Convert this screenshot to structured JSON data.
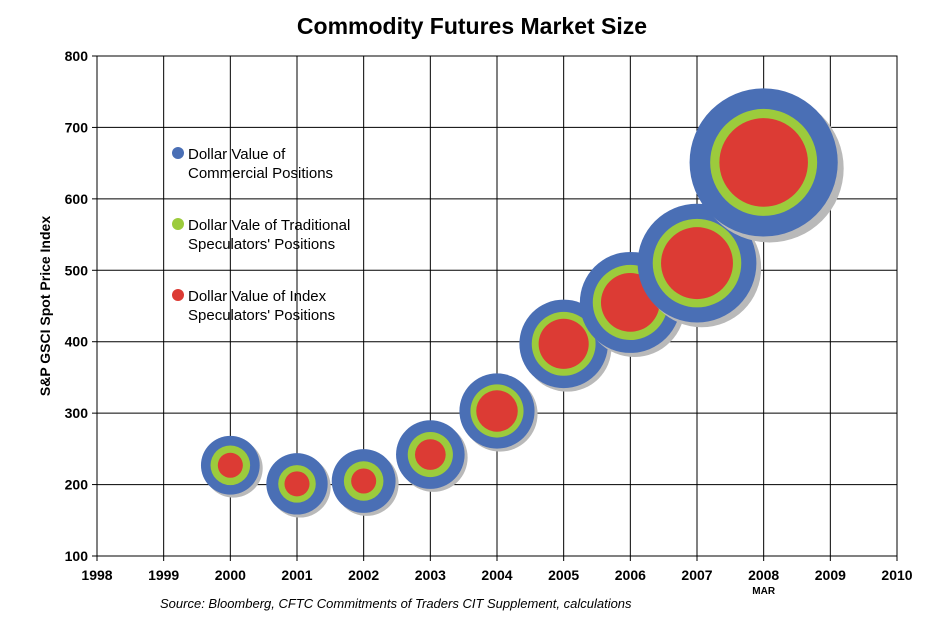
{
  "chart_data": {
    "type": "bubble",
    "title": "Commodity Futures Market Size",
    "xlabel": "",
    "ylabel": "S&P GSCI Spot Price Index",
    "xlim": [
      1998,
      2010
    ],
    "ylim": [
      100,
      800
    ],
    "x_ticks": [
      "1998",
      "1999",
      "2000",
      "2001",
      "2002",
      "2003",
      "2004",
      "2005",
      "2006",
      "2007",
      "2008",
      "2009",
      "2010"
    ],
    "y_ticks": [
      "100",
      "200",
      "300",
      "400",
      "500",
      "600",
      "700",
      "800"
    ],
    "x_sublabel": {
      "x": 2008,
      "text": "MAR"
    },
    "grid": true,
    "legend_position": "left",
    "colors": {
      "commercial": "#4a6fb5",
      "traditional": "#9ccb3c",
      "index": "#dc3b34",
      "shadow": "#b9b9b9"
    },
    "series": [
      {
        "name": "Dollar Value of Commercial Positions",
        "legend_lines": [
          "Dollar Value of",
          "Commercial Positions"
        ]
      },
      {
        "name": "Dollar Vale of Traditional Speculators' Positions",
        "legend_lines": [
          "Dollar Vale of Traditional",
          "Speculators' Positions"
        ]
      },
      {
        "name": "Dollar Value of Index Speculators' Positions",
        "legend_lines": [
          "Dollar Value of Index",
          "Speculators' Positions"
        ]
      }
    ],
    "points": [
      {
        "x": 2000,
        "y": 227,
        "commercial": 2.2,
        "traditional": 1.0,
        "index": 0.4
      },
      {
        "x": 2001,
        "y": 201,
        "commercial": 2.4,
        "traditional": 0.9,
        "index": 0.4
      },
      {
        "x": 2002,
        "y": 205,
        "commercial": 2.6,
        "traditional": 1.0,
        "index": 0.4
      },
      {
        "x": 2003,
        "y": 242,
        "commercial": 3.0,
        "traditional": 1.3,
        "index": 0.6
      },
      {
        "x": 2004,
        "y": 303,
        "commercial": 3.6,
        "traditional": 1.8,
        "index": 1.1
      },
      {
        "x": 2005,
        "y": 397,
        "commercial": 5.0,
        "traditional": 2.6,
        "index": 1.6
      },
      {
        "x": 2006,
        "y": 455,
        "commercial": 6.5,
        "traditional": 3.6,
        "index": 2.2
      },
      {
        "x": 2007,
        "y": 510,
        "commercial": 9.0,
        "traditional": 5.0,
        "index": 3.3
      },
      {
        "x": 2008,
        "y": 651,
        "commercial": 14.0,
        "traditional": 7.3,
        "index": 5.0
      }
    ],
    "source": "Source: Bloomberg, CFTC Commitments of Traders CIT Supplement, calculations"
  }
}
